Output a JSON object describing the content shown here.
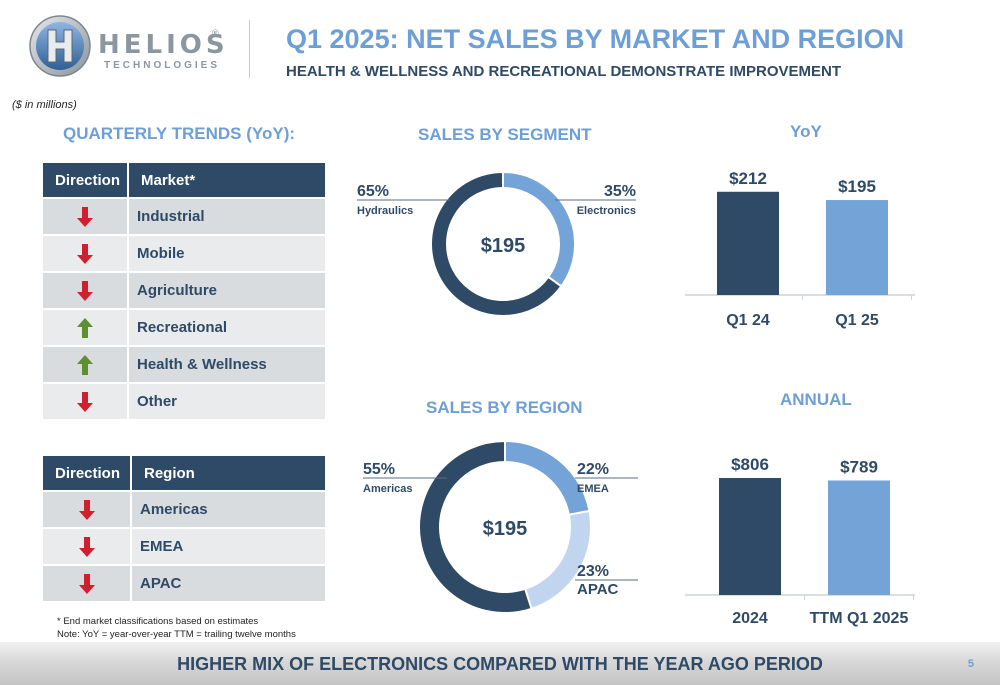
{
  "brand": {
    "name": "HELIOS",
    "registered": "®",
    "tagline": "TECHNOLOGIES"
  },
  "header": {
    "title": "Q1 2025: NET SALES BY MARKET AND REGION",
    "subtitle": "HEALTH & WELLNESS AND RECREATIONAL DEMONSTRATE IMPROVEMENT"
  },
  "units_note": "($ in millions)",
  "trends": {
    "title": "QUARTERLY TRENDS (YoY):",
    "market_table": {
      "headers": [
        "Direction",
        "Market*"
      ],
      "rows": [
        {
          "direction": "down",
          "label": "Industrial"
        },
        {
          "direction": "down",
          "label": "Mobile"
        },
        {
          "direction": "down",
          "label": "Agriculture"
        },
        {
          "direction": "up",
          "label": "Recreational"
        },
        {
          "direction": "up",
          "label": "Health & Wellness"
        },
        {
          "direction": "down",
          "label": "Other"
        }
      ]
    },
    "region_table": {
      "headers": [
        "Direction",
        "Region"
      ],
      "rows": [
        {
          "direction": "down",
          "label": "Americas"
        },
        {
          "direction": "down",
          "label": "EMEA"
        },
        {
          "direction": "down",
          "label": "APAC"
        }
      ]
    }
  },
  "footnotes": [
    "* End market classifications based on estimates",
    "Note: YoY = year-over-year TTM = trailing twelve months"
  ],
  "footer": {
    "text": "HIGHER MIX OF ELECTRONICS COMPARED WITH THE YEAR AGO PERIOD",
    "page": "5"
  },
  "colors": {
    "dark": "#2e4a66",
    "medium": "#74a3d8",
    "light": "#c2d5ee",
    "up": "#5e8f32",
    "down": "#d0202f"
  },
  "chart_data": [
    {
      "type": "pie",
      "title": "SALES BY SEGMENT",
      "center_label": "$195",
      "slices": [
        {
          "name": "Hydraulics",
          "pct_label": "65%",
          "value": 65
        },
        {
          "name": "Electronics",
          "pct_label": "35%",
          "value": 35
        }
      ]
    },
    {
      "type": "pie",
      "title": "SALES BY REGION",
      "center_label": "$195",
      "slices": [
        {
          "name": "Americas",
          "pct_label": "55%",
          "value": 55
        },
        {
          "name": "EMEA",
          "pct_label": "22%",
          "value": 22
        },
        {
          "name": "APAC",
          "pct_label": "23%",
          "value": 23
        }
      ]
    },
    {
      "type": "bar",
      "title": "YoY",
      "categories": [
        "Q1 24",
        "Q1 25"
      ],
      "values": [
        212,
        195
      ],
      "value_labels": [
        "$212",
        "$195"
      ],
      "ylim": [
        0,
        230
      ]
    },
    {
      "type": "bar",
      "title": "ANNUAL",
      "categories": [
        "2024",
        "TTM Q1 2025"
      ],
      "values": [
        806,
        789
      ],
      "value_labels": [
        "$806",
        "$789"
      ],
      "ylim": [
        0,
        875
      ]
    }
  ]
}
